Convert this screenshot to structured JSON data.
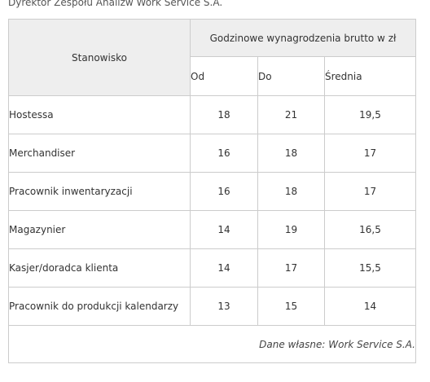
{
  "top_text": "Dyrektor Zespołu Analizw Work Service S.A.",
  "table": {
    "header_job": "Stanowisko",
    "header_wage": "Godzinowe wynagrodzenia brutto w zł",
    "sub_headers": [
      "Od",
      "Do",
      "Średnia"
    ],
    "rows": [
      {
        "job": "Hostessa",
        "from": "18",
        "to": "21",
        "avg": "19,5"
      },
      {
        "job": "Merchandiser",
        "from": "16",
        "to": "18",
        "avg": "17"
      },
      {
        "job": "Pracownik inwentaryzacji",
        "from": "16",
        "to": "18",
        "avg": "17"
      },
      {
        "job": "Magazynier",
        "from": "14",
        "to": "19",
        "avg": "16,5"
      },
      {
        "job": "Kasjer/doradca klienta",
        "from": "14",
        "to": "17",
        "avg": "15,5"
      },
      {
        "job": "Pracownik do produkcji kalendarzy",
        "from": "13",
        "to": "15",
        "avg": "14"
      }
    ],
    "source": "Dane własne: Work Service S.A."
  }
}
